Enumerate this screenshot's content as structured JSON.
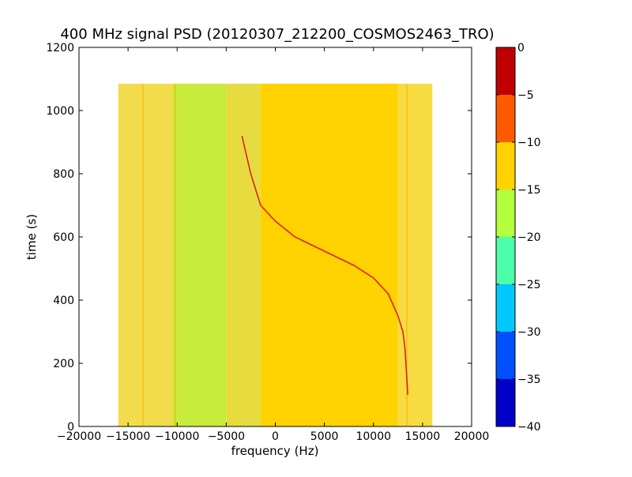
{
  "chart_data": {
    "type": "heatmap",
    "title": "400 MHz signal PSD (20120307_212200_COSMOS2463_TRO)",
    "xlabel": "frequency (Hz)",
    "ylabel": "time (s)",
    "xlim": [
      -20000,
      20000
    ],
    "ylim": [
      0,
      1200
    ],
    "xticks": [
      -20000,
      -15000,
      -10000,
      -5000,
      0,
      5000,
      10000,
      15000,
      20000
    ],
    "xtick_labels": [
      "−20000",
      "−15000",
      "−10000",
      "−5000",
      "0",
      "5000",
      "10000",
      "15000",
      "20000"
    ],
    "yticks": [
      0,
      200,
      400,
      600,
      800,
      1000,
      1200
    ],
    "ytick_labels": [
      "0",
      "200",
      "400",
      "600",
      "800",
      "1000",
      "1200"
    ],
    "data_extent": {
      "x": [
        -16000,
        16000
      ],
      "y": [
        0,
        1085
      ]
    },
    "regions": [
      {
        "x": [
          -16000,
          -10500
        ],
        "level": "-10 to -15",
        "color": "#f2dc4c"
      },
      {
        "x": [
          -10500,
          -5000
        ],
        "level": "-15 to -20",
        "color": "#c8ec3c"
      },
      {
        "x": [
          -5000,
          -1500
        ],
        "level": "-10 to -15",
        "color": "#e6dc40"
      },
      {
        "x": [
          -1500,
          12500
        ],
        "level": "-10 to -15",
        "color": "#ffd200"
      },
      {
        "x": [
          12500,
          16000
        ],
        "level": "-10 to -15",
        "color": "#f6dc40"
      }
    ],
    "series": [
      {
        "points": [
          {
            "x": -3400,
            "y": 920
          },
          {
            "x": -2500,
            "y": 800
          },
          {
            "x": -1500,
            "y": 700
          },
          {
            "x": 0,
            "y": 650
          },
          {
            "x": 2000,
            "y": 600
          },
          {
            "x": 5000,
            "y": 555
          },
          {
            "x": 8000,
            "y": 510
          },
          {
            "x": 10000,
            "y": 470
          },
          {
            "x": 11500,
            "y": 420
          },
          {
            "x": 12500,
            "y": 350
          },
          {
            "x": 13000,
            "y": 300
          },
          {
            "x": 13200,
            "y": 250
          },
          {
            "x": 13300,
            "y": 200
          },
          {
            "x": 13500,
            "y": 100
          }
        ]
      }
    ],
    "vertical_lines": [
      {
        "x": -13500
      },
      {
        "x": -10200
      },
      {
        "x": 13400
      }
    ],
    "colorbar": {
      "range": [
        -40,
        0
      ],
      "ticks": [
        0,
        -5,
        -10,
        -15,
        -20,
        -25,
        -30,
        -35,
        -40
      ],
      "tick_labels": [
        "0",
        "−5",
        "−10",
        "−15",
        "−20",
        "−25",
        "−30",
        "−35",
        "−40"
      ],
      "levels": [
        {
          "from": -5,
          "to": 0,
          "color": "#c00000"
        },
        {
          "from": -10,
          "to": -5,
          "color": "#ff5a00"
        },
        {
          "from": -15,
          "to": -10,
          "color": "#ffd200"
        },
        {
          "from": -20,
          "to": -15,
          "color": "#b4ff3c"
        },
        {
          "from": -25,
          "to": -20,
          "color": "#4cffaa"
        },
        {
          "from": -30,
          "to": -25,
          "color": "#00c8ff"
        },
        {
          "from": -35,
          "to": -30,
          "color": "#0050ff"
        },
        {
          "from": -40,
          "to": -35,
          "color": "#0000c8"
        }
      ]
    },
    "grid": false,
    "legend": "none"
  }
}
